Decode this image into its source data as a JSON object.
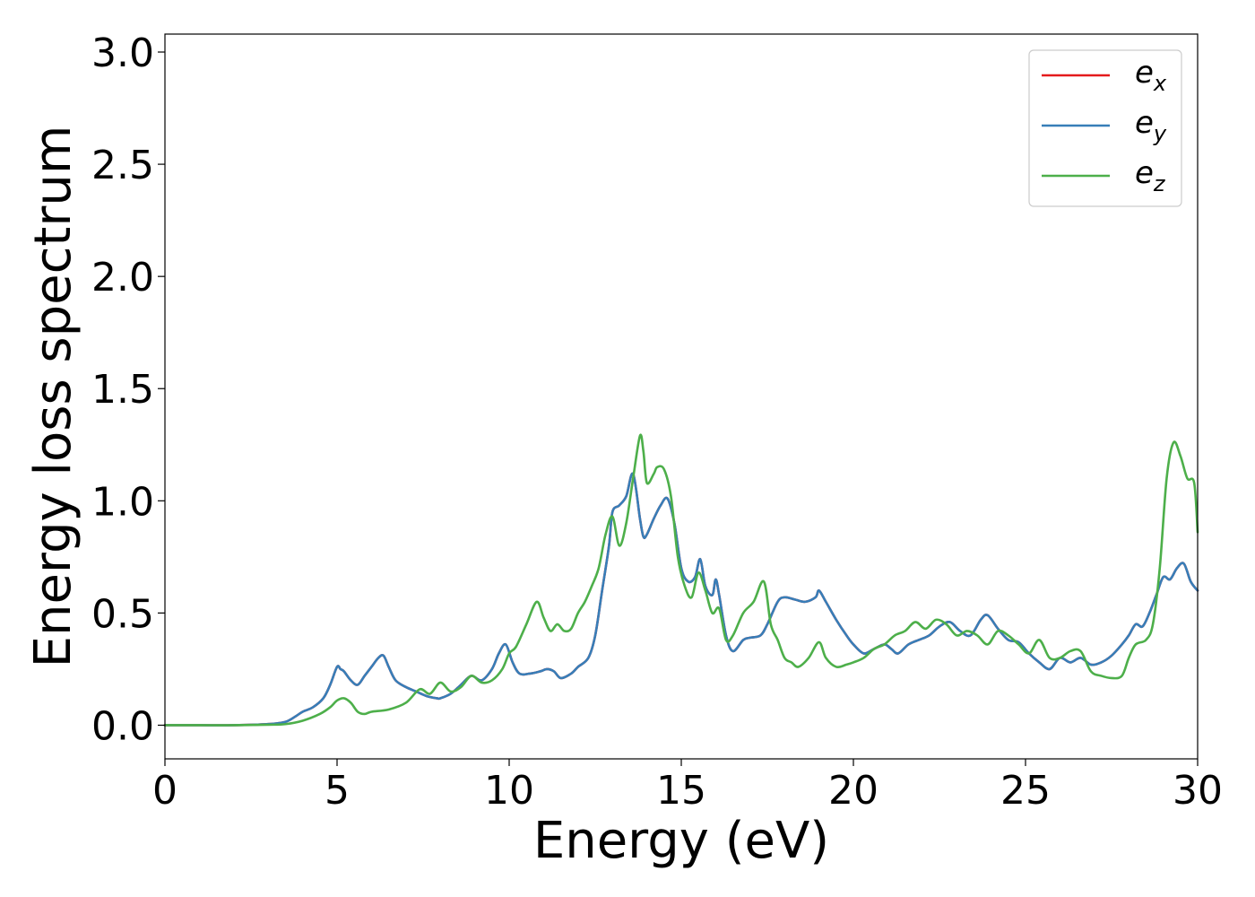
{
  "chart_data": {
    "type": "line",
    "title": "",
    "xlabel": "Energy (eV)",
    "ylabel": "Energy loss spectrum",
    "xlim": [
      0,
      30
    ],
    "ylim": [
      -0.15,
      3.08
    ],
    "xticks": [
      0,
      5,
      10,
      15,
      20,
      25,
      30
    ],
    "xtick_labels": [
      "0",
      "5",
      "10",
      "15",
      "20",
      "25",
      "30"
    ],
    "yticks": [
      0.0,
      0.5,
      1.0,
      1.5,
      2.0,
      2.5,
      3.0
    ],
    "ytick_labels": [
      "0.0",
      "0.5",
      "1.0",
      "1.5",
      "2.0",
      "2.5",
      "3.0"
    ],
    "grid": false,
    "legend_position": "top-right",
    "series": [
      {
        "name": "e_x",
        "label_base": "e",
        "label_sub": "x",
        "color": "#e41a1c",
        "x": [
          0,
          1,
          2,
          3,
          3.5,
          3.8,
          4.0,
          4.3,
          4.6,
          4.8,
          5.0,
          5.1,
          5.2,
          5.4,
          5.6,
          5.8,
          6.0,
          6.2,
          6.35,
          6.5,
          6.7,
          7.0,
          7.3,
          7.6,
          7.9,
          8.0,
          8.3,
          8.6,
          8.9,
          9.2,
          9.5,
          9.7,
          9.9,
          10.1,
          10.3,
          10.6,
          10.9,
          11.1,
          11.3,
          11.5,
          11.8,
          12.0,
          12.3,
          12.5,
          12.7,
          12.9,
          13.0,
          13.2,
          13.4,
          13.6,
          13.8,
          13.9,
          14.0,
          14.2,
          14.4,
          14.6,
          14.8,
          15.0,
          15.2,
          15.4,
          15.55,
          15.7,
          15.9,
          16.0,
          16.1,
          16.3,
          16.5,
          16.8,
          17.0,
          17.3,
          17.5,
          17.8,
          18.0,
          18.3,
          18.6,
          18.9,
          19.0,
          19.2,
          19.5,
          19.8,
          20.0,
          20.3,
          20.6,
          20.9,
          21.1,
          21.3,
          21.6,
          21.9,
          22.2,
          22.5,
          22.8,
          23.1,
          23.4,
          23.7,
          23.9,
          24.2,
          24.5,
          24.8,
          25.1,
          25.4,
          25.7,
          26.0,
          26.3,
          26.6,
          26.9,
          27.2,
          27.5,
          27.8,
          28.0,
          28.2,
          28.4,
          28.6,
          28.8,
          29.0,
          29.2,
          29.4,
          29.6,
          29.8,
          30
        ],
        "y": [
          0,
          0,
          0,
          0.005,
          0.015,
          0.04,
          0.06,
          0.08,
          0.12,
          0.18,
          0.26,
          0.25,
          0.24,
          0.2,
          0.18,
          0.22,
          0.26,
          0.3,
          0.31,
          0.26,
          0.2,
          0.17,
          0.15,
          0.13,
          0.12,
          0.12,
          0.14,
          0.18,
          0.22,
          0.2,
          0.25,
          0.32,
          0.36,
          0.28,
          0.23,
          0.23,
          0.24,
          0.25,
          0.24,
          0.21,
          0.23,
          0.26,
          0.3,
          0.4,
          0.6,
          0.8,
          0.95,
          0.98,
          1.02,
          1.12,
          0.92,
          0.84,
          0.85,
          0.92,
          0.98,
          1.01,
          0.9,
          0.7,
          0.64,
          0.66,
          0.74,
          0.62,
          0.58,
          0.65,
          0.58,
          0.4,
          0.33,
          0.38,
          0.39,
          0.4,
          0.45,
          0.55,
          0.57,
          0.56,
          0.55,
          0.57,
          0.6,
          0.55,
          0.47,
          0.4,
          0.36,
          0.32,
          0.34,
          0.36,
          0.34,
          0.32,
          0.36,
          0.38,
          0.4,
          0.44,
          0.46,
          0.42,
          0.4,
          0.47,
          0.49,
          0.43,
          0.38,
          0.37,
          0.32,
          0.28,
          0.25,
          0.3,
          0.28,
          0.3,
          0.27,
          0.28,
          0.31,
          0.36,
          0.4,
          0.45,
          0.44,
          0.5,
          0.58,
          0.66,
          0.65,
          0.7,
          0.72,
          0.64,
          0.6
        ]
      },
      {
        "name": "e_y",
        "label_base": "e",
        "label_sub": "y",
        "color": "#377eb8",
        "x": [
          0,
          1,
          2,
          3,
          3.5,
          3.8,
          4.0,
          4.3,
          4.6,
          4.8,
          5.0,
          5.1,
          5.2,
          5.4,
          5.6,
          5.8,
          6.0,
          6.2,
          6.35,
          6.5,
          6.7,
          7.0,
          7.3,
          7.6,
          7.9,
          8.0,
          8.3,
          8.6,
          8.9,
          9.2,
          9.5,
          9.7,
          9.9,
          10.1,
          10.3,
          10.6,
          10.9,
          11.1,
          11.3,
          11.5,
          11.8,
          12.0,
          12.3,
          12.5,
          12.7,
          12.9,
          13.0,
          13.2,
          13.4,
          13.6,
          13.8,
          13.9,
          14.0,
          14.2,
          14.4,
          14.6,
          14.8,
          15.0,
          15.2,
          15.4,
          15.55,
          15.7,
          15.9,
          16.0,
          16.1,
          16.3,
          16.5,
          16.8,
          17.0,
          17.3,
          17.5,
          17.8,
          18.0,
          18.3,
          18.6,
          18.9,
          19.0,
          19.2,
          19.5,
          19.8,
          20.0,
          20.3,
          20.6,
          20.9,
          21.1,
          21.3,
          21.6,
          21.9,
          22.2,
          22.5,
          22.8,
          23.1,
          23.4,
          23.7,
          23.9,
          24.2,
          24.5,
          24.8,
          25.1,
          25.4,
          25.7,
          26.0,
          26.3,
          26.6,
          26.9,
          27.2,
          27.5,
          27.8,
          28.0,
          28.2,
          28.4,
          28.6,
          28.8,
          29.0,
          29.2,
          29.4,
          29.6,
          29.8,
          30
        ],
        "y": [
          0,
          0,
          0,
          0.005,
          0.015,
          0.04,
          0.06,
          0.08,
          0.12,
          0.18,
          0.26,
          0.25,
          0.24,
          0.2,
          0.18,
          0.22,
          0.26,
          0.3,
          0.31,
          0.26,
          0.2,
          0.17,
          0.15,
          0.13,
          0.12,
          0.12,
          0.14,
          0.18,
          0.22,
          0.2,
          0.25,
          0.32,
          0.36,
          0.28,
          0.23,
          0.23,
          0.24,
          0.25,
          0.24,
          0.21,
          0.23,
          0.26,
          0.3,
          0.4,
          0.6,
          0.8,
          0.95,
          0.98,
          1.02,
          1.12,
          0.92,
          0.84,
          0.85,
          0.92,
          0.98,
          1.01,
          0.9,
          0.7,
          0.64,
          0.66,
          0.74,
          0.62,
          0.58,
          0.65,
          0.58,
          0.4,
          0.33,
          0.38,
          0.39,
          0.4,
          0.45,
          0.55,
          0.57,
          0.56,
          0.55,
          0.57,
          0.6,
          0.55,
          0.47,
          0.4,
          0.36,
          0.32,
          0.34,
          0.36,
          0.34,
          0.32,
          0.36,
          0.38,
          0.4,
          0.44,
          0.46,
          0.42,
          0.4,
          0.47,
          0.49,
          0.43,
          0.38,
          0.37,
          0.32,
          0.28,
          0.25,
          0.3,
          0.28,
          0.3,
          0.27,
          0.28,
          0.31,
          0.36,
          0.4,
          0.45,
          0.44,
          0.5,
          0.58,
          0.66,
          0.65,
          0.7,
          0.72,
          0.64,
          0.6
        ]
      },
      {
        "name": "e_z",
        "label_base": "e",
        "label_sub": "z",
        "color": "#4daf4a",
        "x": [
          0,
          1,
          2,
          3,
          3.5,
          4.0,
          4.5,
          4.8,
          5.0,
          5.2,
          5.4,
          5.6,
          5.8,
          6.0,
          6.5,
          7.0,
          7.4,
          7.7,
          8.0,
          8.3,
          8.6,
          8.9,
          9.2,
          9.5,
          9.8,
          10.0,
          10.2,
          10.5,
          10.8,
          11.0,
          11.2,
          11.4,
          11.6,
          11.8,
          12.0,
          12.2,
          12.4,
          12.6,
          12.8,
          13.0,
          13.2,
          13.4,
          13.6,
          13.8,
          13.9,
          14.0,
          14.2,
          14.3,
          14.5,
          14.7,
          14.9,
          15.1,
          15.3,
          15.5,
          15.7,
          15.9,
          16.1,
          16.3,
          16.5,
          16.8,
          17.1,
          17.4,
          17.6,
          17.8,
          18.0,
          18.2,
          18.4,
          18.7,
          19.0,
          19.2,
          19.5,
          19.8,
          20.0,
          20.3,
          20.6,
          20.9,
          21.2,
          21.5,
          21.8,
          22.1,
          22.4,
          22.7,
          23.0,
          23.3,
          23.6,
          23.9,
          24.2,
          24.5,
          24.8,
          25.1,
          25.4,
          25.7,
          26.0,
          26.3,
          26.6,
          26.9,
          27.2,
          27.5,
          27.8,
          28.0,
          28.2,
          28.5,
          28.7,
          28.9,
          29.1,
          29.3,
          29.5,
          29.7,
          29.9,
          30
        ],
        "y": [
          0,
          0,
          0,
          0.002,
          0.005,
          0.02,
          0.05,
          0.08,
          0.11,
          0.12,
          0.1,
          0.06,
          0.05,
          0.06,
          0.07,
          0.1,
          0.16,
          0.14,
          0.19,
          0.15,
          0.17,
          0.22,
          0.19,
          0.2,
          0.25,
          0.32,
          0.35,
          0.45,
          0.55,
          0.48,
          0.42,
          0.45,
          0.42,
          0.43,
          0.5,
          0.55,
          0.62,
          0.7,
          0.85,
          0.93,
          0.8,
          0.9,
          1.1,
          1.29,
          1.22,
          1.08,
          1.12,
          1.15,
          1.14,
          1.02,
          0.75,
          0.62,
          0.57,
          0.68,
          0.6,
          0.5,
          0.52,
          0.38,
          0.4,
          0.5,
          0.55,
          0.64,
          0.45,
          0.38,
          0.3,
          0.28,
          0.26,
          0.3,
          0.37,
          0.3,
          0.26,
          0.27,
          0.28,
          0.3,
          0.34,
          0.36,
          0.4,
          0.42,
          0.46,
          0.43,
          0.47,
          0.45,
          0.4,
          0.42,
          0.4,
          0.36,
          0.42,
          0.4,
          0.36,
          0.32,
          0.38,
          0.3,
          0.3,
          0.33,
          0.33,
          0.24,
          0.22,
          0.21,
          0.22,
          0.3,
          0.36,
          0.38,
          0.45,
          0.7,
          1.1,
          1.26,
          1.2,
          1.1,
          1.08,
          0.86
        ]
      }
    ]
  }
}
